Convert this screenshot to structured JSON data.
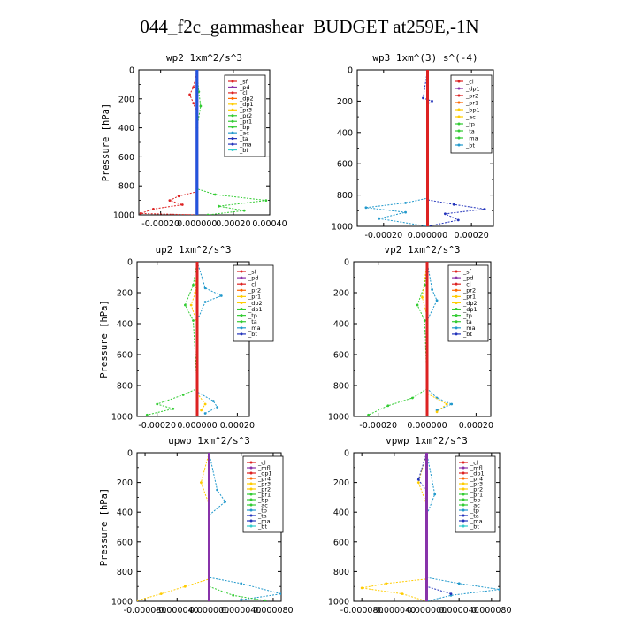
{
  "title": "044_f2c_gammashear  BUDGET at259E,-1N",
  "chart_data": [
    {
      "type": "line",
      "title": "wp2   1xm^2/s^3",
      "ylabel": "Pressure [hPa]",
      "ylim": [
        1000,
        0
      ],
      "yticks": [
        0,
        200,
        400,
        600,
        800,
        1000
      ],
      "xlim": [
        -0.00032,
        0.0004
      ],
      "xticks": [
        -0.0002,
        0,
        0.0002,
        0.0004
      ],
      "xticklabels": [
        "-0.00020",
        "0.000000",
        "0.00020",
        "0.00040"
      ],
      "legend": [
        "_sf",
        "_pd",
        "_cl",
        "_dp2",
        "_dp1",
        "_pr3",
        "_pr2",
        "_pr1",
        "_bp",
        "_ac",
        "_ta",
        "_ma",
        "_bt"
      ],
      "series": [
        {
          "name": "_dp1",
          "color": "#dd2222",
          "points": [
            [
              0,
              0
            ],
            [
              -2e-05,
              120
            ],
            [
              -4e-05,
              170
            ],
            [
              -2e-05,
              230
            ],
            [
              0,
              300
            ],
            [
              0,
              840
            ],
            [
              -0.0001,
              870
            ],
            [
              -0.00015,
              900
            ],
            [
              -8e-05,
              930
            ],
            [
              -0.00024,
              960
            ],
            [
              -0.00031,
              990
            ],
            [
              0,
              1000
            ]
          ]
        },
        {
          "name": "_pr1",
          "color": "#33cc33",
          "points": [
            [
              0,
              0
            ],
            [
              1e-05,
              150
            ],
            [
              2e-05,
              250
            ],
            [
              0,
              400
            ],
            [
              0,
              820
            ],
            [
              0.0001,
              860
            ],
            [
              0.00038,
              900
            ],
            [
              0.00012,
              940
            ],
            [
              0.00026,
              970
            ],
            [
              6e-05,
              1000
            ]
          ]
        },
        {
          "name": "_ac",
          "color": "#8833aa",
          "points": [
            [
              0,
              0
            ],
            [
              0,
              1000
            ]
          ]
        },
        {
          "name": "_bt",
          "color": "#2255dd",
          "points": [
            [
              0,
              0
            ],
            [
              0,
              1000
            ]
          ]
        }
      ]
    },
    {
      "type": "line",
      "title": "wp3   1xm^(3) s^(-4)",
      "ylabel": "",
      "ylim": [
        1000,
        0
      ],
      "yticks": [
        0,
        200,
        400,
        600,
        800,
        1000
      ],
      "xlim": [
        -0.00032,
        0.0003
      ],
      "xticks": [
        -0.0002,
        0,
        0.0002
      ],
      "xticklabels": [
        "-0.00020",
        "0.000000",
        "0.00020"
      ],
      "legend": [
        "_cl",
        "_dp1",
        "_pr2",
        "_pr1",
        "_bp1",
        "_ac",
        "_tp",
        "_ta",
        "_ma",
        "_bt"
      ],
      "series": [
        {
          "name": "_tp",
          "color": "#2299cc",
          "points": [
            [
              0,
              0
            ],
            [
              0,
              820
            ],
            [
              -0.0001,
              850
            ],
            [
              -0.00028,
              880
            ],
            [
              -0.0001,
              910
            ],
            [
              -0.00022,
              950
            ],
            [
              0,
              1000
            ]
          ]
        },
        {
          "name": "_ta",
          "color": "#2233bb",
          "points": [
            [
              0,
              0
            ],
            [
              -2e-05,
              180
            ],
            [
              2e-05,
              200
            ],
            [
              0,
              220
            ],
            [
              0,
              830
            ],
            [
              0.00012,
              860
            ],
            [
              0.00026,
              890
            ],
            [
              8e-05,
              920
            ],
            [
              0.00014,
              960
            ],
            [
              0,
              1000
            ]
          ]
        },
        {
          "name": "_dp1",
          "color": "#dd2222",
          "points": [
            [
              0,
              0
            ],
            [
              0,
              1000
            ]
          ]
        }
      ]
    },
    {
      "type": "line",
      "title": "up2   1xm^2/s^3",
      "ylabel": "Pressure [hPa]",
      "ylim": [
        1000,
        0
      ],
      "yticks": [
        0,
        200,
        400,
        600,
        800,
        1000
      ],
      "xlim": [
        -0.0003,
        0.00026
      ],
      "xticks": [
        -0.0002,
        0,
        0.0002
      ],
      "xticklabels": [
        "-0.00020",
        "0.000000",
        "0.00020"
      ],
      "legend": [
        "_sf",
        "_pd",
        "_cl",
        "_pr2",
        "_pr1",
        "_dp2",
        "_dp1",
        "_tp",
        "_ta",
        "_ma",
        "_bt"
      ],
      "series": [
        {
          "name": "_pr1",
          "color": "#33cc33",
          "points": [
            [
              0,
              0
            ],
            [
              -2e-05,
              150
            ],
            [
              -6e-05,
              280
            ],
            [
              -2e-05,
              380
            ],
            [
              0,
              820
            ],
            [
              -7e-05,
              860
            ],
            [
              -0.0002,
              920
            ],
            [
              -0.00012,
              950
            ],
            [
              -0.00025,
              990
            ]
          ]
        },
        {
          "name": "_tp",
          "color": "#2299cc",
          "points": [
            [
              0,
              0
            ],
            [
              4e-05,
              170
            ],
            [
              0.00012,
              220
            ],
            [
              4e-05,
              260
            ],
            [
              0,
              380
            ],
            [
              0,
              840
            ],
            [
              8e-05,
              900
            ],
            [
              0.0001,
              940
            ],
            [
              4e-05,
              980
            ]
          ]
        },
        {
          "name": "_pr2",
          "color": "#ffcc00",
          "points": [
            [
              0,
              0
            ],
            [
              -1e-05,
              200
            ],
            [
              -3e-05,
              280
            ],
            [
              0,
              400
            ],
            [
              0,
              850
            ],
            [
              4e-05,
              920
            ],
            [
              2e-05,
              960
            ]
          ]
        },
        {
          "name": "_dp1",
          "color": "#dd2222",
          "points": [
            [
              0,
              0
            ],
            [
              0,
              1000
            ]
          ]
        }
      ]
    },
    {
      "type": "line",
      "title": "vp2   1xm^2/s^3",
      "ylabel": "",
      "ylim": [
        1000,
        0
      ],
      "yticks": [
        0,
        200,
        400,
        600,
        800,
        1000
      ],
      "xlim": [
        -0.0003,
        0.00026
      ],
      "xticks": [
        -0.0002,
        0,
        0.0002
      ],
      "xticklabels": [
        "-0.00020",
        "0.000000",
        "0.00020"
      ],
      "legend": [
        "_sf",
        "_pd",
        "_cl",
        "_pr2",
        "_pr1",
        "_dp2",
        "_dp1",
        "_tp",
        "_ta",
        "_ma",
        "_bt"
      ],
      "series": [
        {
          "name": "_pr1",
          "color": "#33cc33",
          "points": [
            [
              0,
              0
            ],
            [
              -1e-05,
              150
            ],
            [
              -4e-05,
              280
            ],
            [
              -1e-05,
              380
            ],
            [
              0,
              820
            ],
            [
              -6e-05,
              880
            ],
            [
              -0.00016,
              930
            ],
            [
              -0.00024,
              990
            ]
          ]
        },
        {
          "name": "_tp",
          "color": "#2299cc",
          "points": [
            [
              0,
              0
            ],
            [
              2e-05,
              180
            ],
            [
              4e-05,
              250
            ],
            [
              0,
              380
            ],
            [
              0,
              820
            ],
            [
              4e-05,
              880
            ],
            [
              0.0001,
              920
            ],
            [
              4e-05,
              960
            ]
          ]
        },
        {
          "name": "_pr2",
          "color": "#ffcc00",
          "points": [
            [
              0,
              0
            ],
            [
              -2e-05,
              230
            ],
            [
              0,
              350
            ],
            [
              0,
              850
            ],
            [
              8e-05,
              920
            ],
            [
              4e-05,
              970
            ]
          ]
        },
        {
          "name": "_dp1",
          "color": "#dd2222",
          "points": [
            [
              0,
              0
            ],
            [
              0,
              1000
            ]
          ]
        }
      ]
    },
    {
      "type": "line",
      "title": "upwp   1xm^2/s^3",
      "ylabel": "Pressure [hPa]",
      "ylim": [
        1000,
        0
      ],
      "yticks": [
        0,
        200,
        400,
        600,
        800,
        1000
      ],
      "xlim": [
        -9e-05,
        9e-05
      ],
      "xticks": [
        -8e-05,
        -4e-05,
        0,
        4e-05,
        8e-05
      ],
      "xticklabels": [
        "-0.000080",
        "-0.000040",
        "0.000000",
        "0.000040",
        "0.000080"
      ],
      "legend": [
        "_cl",
        "_mfl",
        "_dp1",
        "_pr4",
        "_pr3",
        "_pr2",
        "_pr1",
        "_bp",
        "_ac",
        "_tp",
        "_ta",
        "_ma",
        "_bt"
      ],
      "series": [
        {
          "name": "_pr2",
          "color": "#ffcc00",
          "points": [
            [
              0,
              0
            ],
            [
              -1e-05,
              200
            ],
            [
              0,
              350
            ],
            [
              0,
              850
            ],
            [
              -3e-05,
              900
            ],
            [
              -6e-05,
              950
            ],
            [
              -9e-05,
              995
            ]
          ]
        },
        {
          "name": "_tp",
          "color": "#2299cc",
          "points": [
            [
              0,
              0
            ],
            [
              1e-05,
              250
            ],
            [
              2e-05,
              330
            ],
            [
              0,
              420
            ],
            [
              0,
              840
            ],
            [
              4e-05,
              880
            ],
            [
              9e-05,
              950
            ],
            [
              4e-05,
              990
            ]
          ]
        },
        {
          "name": "_bp",
          "color": "#33cc33",
          "points": [
            [
              0,
              900
            ],
            [
              3e-05,
              960
            ],
            [
              7e-05,
              995
            ]
          ]
        },
        {
          "name": "_dp1",
          "color": "#dd2222",
          "points": [
            [
              0,
              0
            ],
            [
              0,
              1000
            ]
          ]
        },
        {
          "name": "_mfl",
          "color": "#8833aa",
          "points": [
            [
              0,
              0
            ],
            [
              0,
              1000
            ]
          ]
        }
      ]
    },
    {
      "type": "line",
      "title": "vpwp   1xm^2/s^3",
      "ylabel": "",
      "ylim": [
        1000,
        0
      ],
      "yticks": [
        0,
        200,
        400,
        600,
        800,
        1000
      ],
      "xlim": [
        -9e-05,
        9e-05
      ],
      "xticks": [
        -8e-05,
        -4e-05,
        0,
        4e-05,
        8e-05
      ],
      "xticklabels": [
        "-0.000080",
        "-0.000040",
        "0.000000",
        "0.000040",
        "0.000080"
      ],
      "legend": [
        "_cl",
        "_mfl",
        "_dp1",
        "_pr4",
        "_pr3",
        "_pr2",
        "_pr1",
        "_bp",
        "_ac",
        "_tp",
        "_ta",
        "_ma",
        "_bt"
      ],
      "series": [
        {
          "name": "_pr2",
          "color": "#ffcc00",
          "points": [
            [
              0,
              0
            ],
            [
              -1e-05,
              200
            ],
            [
              0,
              350
            ],
            [
              0,
              850
            ],
            [
              -5e-05,
              880
            ],
            [
              -8e-05,
              910
            ],
            [
              -3e-05,
              950
            ],
            [
              0,
              1000
            ]
          ]
        },
        {
          "name": "_tp",
          "color": "#2299cc",
          "points": [
            [
              0,
              0
            ],
            [
              1e-05,
              280
            ],
            [
              0,
              420
            ],
            [
              0,
              840
            ],
            [
              4e-05,
              880
            ],
            [
              9e-05,
              920
            ],
            [
              3e-05,
              960
            ],
            [
              0,
              1000
            ]
          ]
        },
        {
          "name": "_ta",
          "color": "#2233bb",
          "points": [
            [
              0,
              0
            ],
            [
              -1e-05,
              180
            ],
            [
              0,
              260
            ],
            [
              0,
              900
            ],
            [
              3e-05,
              950
            ]
          ]
        },
        {
          "name": "_dp1",
          "color": "#dd2222",
          "points": [
            [
              0,
              0
            ],
            [
              0,
              1000
            ]
          ]
        },
        {
          "name": "_mfl",
          "color": "#8833aa",
          "points": [
            [
              0,
              0
            ],
            [
              0,
              1000
            ]
          ]
        }
      ]
    }
  ],
  "palette": {
    "legend_colors": [
      "#dd2222",
      "#8833aa",
      "#dd2222",
      "#ff6600",
      "#ffcc00",
      "#ffcc00",
      "#33cc33",
      "#33cc33",
      "#33cc33",
      "#2299cc",
      "#2233bb",
      "#2233bb",
      "#33cccc"
    ]
  }
}
